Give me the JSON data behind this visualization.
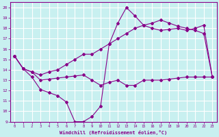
{
  "xlabel": "Windchill (Refroidissement éolien,°C)",
  "background_color": "#c8f0f0",
  "grid_color": "#b0dada",
  "line_color": "#880088",
  "xlim": [
    -0.5,
    23.5
  ],
  "ylim": [
    9,
    20.5
  ],
  "xticks": [
    0,
    1,
    2,
    3,
    4,
    5,
    6,
    7,
    8,
    9,
    10,
    11,
    12,
    13,
    14,
    15,
    16,
    17,
    18,
    19,
    20,
    21,
    22,
    23
  ],
  "yticks": [
    9,
    10,
    11,
    12,
    13,
    14,
    15,
    16,
    17,
    18,
    19,
    20
  ],
  "series1_x": [
    0,
    1,
    2,
    3,
    4,
    5,
    6,
    7,
    8,
    9,
    10,
    11,
    12,
    13,
    14,
    15,
    16,
    17,
    18,
    19,
    20,
    21,
    22,
    23
  ],
  "series1_y": [
    15.3,
    14.1,
    13.3,
    12.1,
    11.8,
    11.5,
    10.9,
    9.0,
    9.0,
    9.5,
    10.5,
    16.5,
    18.5,
    20.0,
    19.2,
    18.3,
    18.0,
    17.8,
    17.9,
    18.0,
    17.8,
    18.0,
    18.3,
    13.3
  ],
  "series2_x": [
    0,
    1,
    2,
    3,
    4,
    5,
    6,
    7,
    8,
    9,
    10,
    11,
    12,
    13,
    14,
    15,
    16,
    17,
    18,
    19,
    20,
    21,
    22,
    23
  ],
  "series2_y": [
    15.3,
    14.1,
    13.8,
    13.0,
    13.1,
    13.2,
    13.3,
    13.4,
    13.5,
    13.0,
    12.5,
    12.8,
    13.0,
    12.5,
    12.5,
    13.0,
    13.0,
    13.0,
    13.1,
    13.2,
    13.3,
    13.3,
    13.3,
    13.3
  ],
  "series3_x": [
    0,
    1,
    2,
    3,
    4,
    5,
    6,
    7,
    8,
    9,
    10,
    11,
    12,
    13,
    14,
    15,
    16,
    17,
    18,
    19,
    20,
    21,
    22,
    23
  ],
  "series3_y": [
    15.3,
    14.1,
    13.8,
    13.5,
    13.8,
    14.0,
    14.5,
    15.0,
    15.5,
    15.5,
    16.0,
    16.5,
    17.0,
    17.5,
    18.0,
    18.3,
    18.5,
    18.8,
    18.5,
    18.2,
    18.0,
    17.8,
    17.5,
    13.3
  ]
}
